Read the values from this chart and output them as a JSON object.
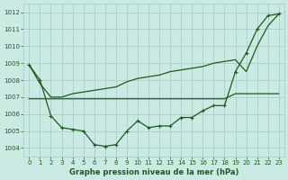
{
  "background_color": "#cceae4",
  "grid_color": "#aacfc8",
  "line_color": "#1a5c1a",
  "xlabel": "Graphe pression niveau de la mer (hPa)",
  "xlim": [
    -0.5,
    23.5
  ],
  "ylim": [
    1003.5,
    1012.5
  ],
  "yticks": [
    1004,
    1005,
    1006,
    1007,
    1008,
    1009,
    1010,
    1011,
    1012
  ],
  "xticks": [
    0,
    1,
    2,
    3,
    4,
    5,
    6,
    7,
    8,
    9,
    10,
    11,
    12,
    13,
    14,
    15,
    16,
    17,
    18,
    19,
    20,
    21,
    22,
    23
  ],
  "line1_x": [
    0,
    1,
    2,
    3,
    4,
    5,
    6,
    7,
    8,
    9,
    10,
    11,
    12,
    13,
    14,
    15,
    16,
    17,
    18,
    19,
    20,
    21,
    22,
    23
  ],
  "line1_y": [
    1008.9,
    1008.0,
    1005.9,
    1005.2,
    1005.1,
    1005.0,
    1004.2,
    1004.1,
    1004.2,
    1005.0,
    1005.6,
    1005.2,
    1005.3,
    1005.3,
    1005.8,
    1005.8,
    1006.2,
    1006.5,
    1006.5,
    1008.5,
    1009.6,
    1011.0,
    1011.8,
    1011.9
  ],
  "line2_x": [
    0,
    1,
    2,
    3,
    4,
    5,
    6,
    7,
    8,
    9,
    10,
    11,
    12,
    13,
    14,
    15,
    16,
    17,
    18,
    19,
    20,
    21,
    22,
    23
  ],
  "line2_y": [
    1006.9,
    1006.9,
    1006.9,
    1006.9,
    1006.9,
    1006.9,
    1006.9,
    1006.9,
    1006.9,
    1006.9,
    1006.9,
    1006.9,
    1006.9,
    1006.9,
    1006.9,
    1006.9,
    1006.9,
    1006.9,
    1006.9,
    1007.2,
    1007.2,
    1007.2,
    1007.2,
    1007.2
  ],
  "line3_x": [
    0,
    1,
    2,
    3,
    4,
    5,
    6,
    7,
    8,
    9,
    10,
    11,
    12,
    13,
    14,
    15,
    16,
    17,
    18,
    19,
    20,
    21,
    22,
    23
  ],
  "line3_y": [
    1008.9,
    1007.8,
    1007.0,
    1007.0,
    1007.2,
    1007.3,
    1007.4,
    1007.5,
    1007.6,
    1007.9,
    1008.1,
    1008.2,
    1008.3,
    1008.5,
    1008.6,
    1008.7,
    1008.8,
    1009.0,
    1009.1,
    1009.2,
    1008.5,
    1010.0,
    1011.2,
    1011.9
  ]
}
